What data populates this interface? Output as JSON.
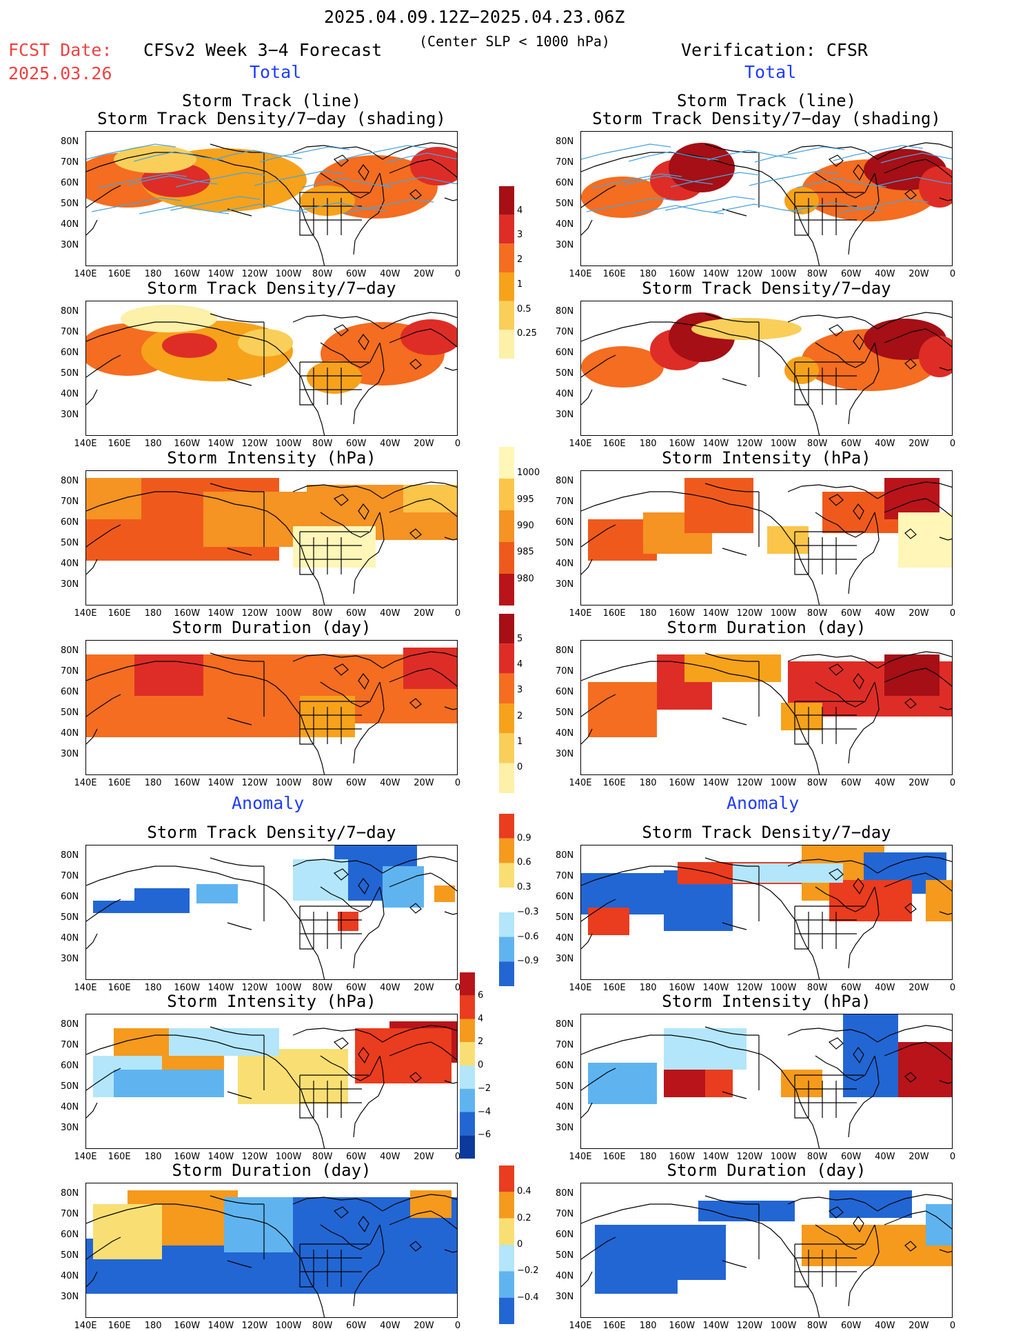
{
  "header": {
    "date_range": "2025.04.09.12Z−2025.04.23.06Z",
    "fcst_label": "FCST Date:",
    "fcst_date": "2025.03.26",
    "left_title": "CFSv2 Week 3−4 Forecast",
    "center_note": "(Center SLP < 1000 hPa)",
    "right_title": "Verification: CFSR",
    "total_left": "Total",
    "total_right": "Total",
    "anomaly_left": "Anomaly",
    "anomaly_right": "Anomaly"
  },
  "axes": {
    "lat_ticks": [
      "80N",
      "70N",
      "60N",
      "50N",
      "40N",
      "30N"
    ],
    "lon_ticks": [
      "140E",
      "160E",
      "180",
      "160W",
      "140W",
      "120W",
      "100W",
      "80W",
      "60W",
      "40W",
      "20W",
      "0"
    ]
  },
  "panels": {
    "p1_title_a": "Storm Track (line)",
    "p1_title_b": "Storm Track Density/7−day (shading)",
    "p2_title": "Storm Track Density/7−day",
    "p3_title": "Storm Intensity (hPa)",
    "p4_title": "Storm Duration (day)",
    "a1_title": "Storm Track Density/7−day",
    "a2_title": "Storm Intensity (hPa)",
    "a3_title": "Storm Duration (day)"
  },
  "colorbars": {
    "density": {
      "labels": [
        "4",
        "3",
        "2",
        "1",
        "0.5",
        "0.25"
      ],
      "colors": [
        "#a50f15",
        "#de2d26",
        "#f46d20",
        "#f7a21b",
        "#f9cf5a",
        "#fdf0a8"
      ]
    },
    "intensity": {
      "labels": [
        "1000",
        "995",
        "990",
        "985",
        "980"
      ],
      "colors": [
        "#fff6b8",
        "#fbc54a",
        "#f59323",
        "#ef5a1c",
        "#b8141a"
      ]
    },
    "duration": {
      "labels": [
        "5",
        "4",
        "3",
        "2",
        "1",
        "0"
      ],
      "colors": [
        "#a50f15",
        "#de2d26",
        "#f46d20",
        "#f7a21b",
        "#f9cf5a",
        "#fdf0a8"
      ]
    },
    "anom_density": {
      "labels": [
        "0.9",
        "0.6",
        "0.3",
        "−0.3",
        "−0.6",
        "−0.9"
      ],
      "colors": [
        "#ea3c1e",
        "#f59a1c",
        "#f9df73",
        "#ffffff",
        "#b3e6fb",
        "#5fb4f0",
        "#2266d4"
      ]
    },
    "anom_intensity": {
      "labels": [
        "6",
        "4",
        "2",
        "0",
        "−2",
        "−4",
        "−6"
      ],
      "colors": [
        "#b8141a",
        "#ea3c1e",
        "#f59a1c",
        "#f9df73",
        "#b3e6fb",
        "#5fb4f0",
        "#2266d4",
        "#0b3a9c"
      ]
    },
    "anom_duration": {
      "labels": [
        "0.4",
        "0.2",
        "0",
        "−0.2",
        "−0.4"
      ],
      "colors": [
        "#ea3c1e",
        "#f59a1c",
        "#f9df73",
        "#b3e6fb",
        "#5fb4f0",
        "#2266d4"
      ]
    }
  }
}
